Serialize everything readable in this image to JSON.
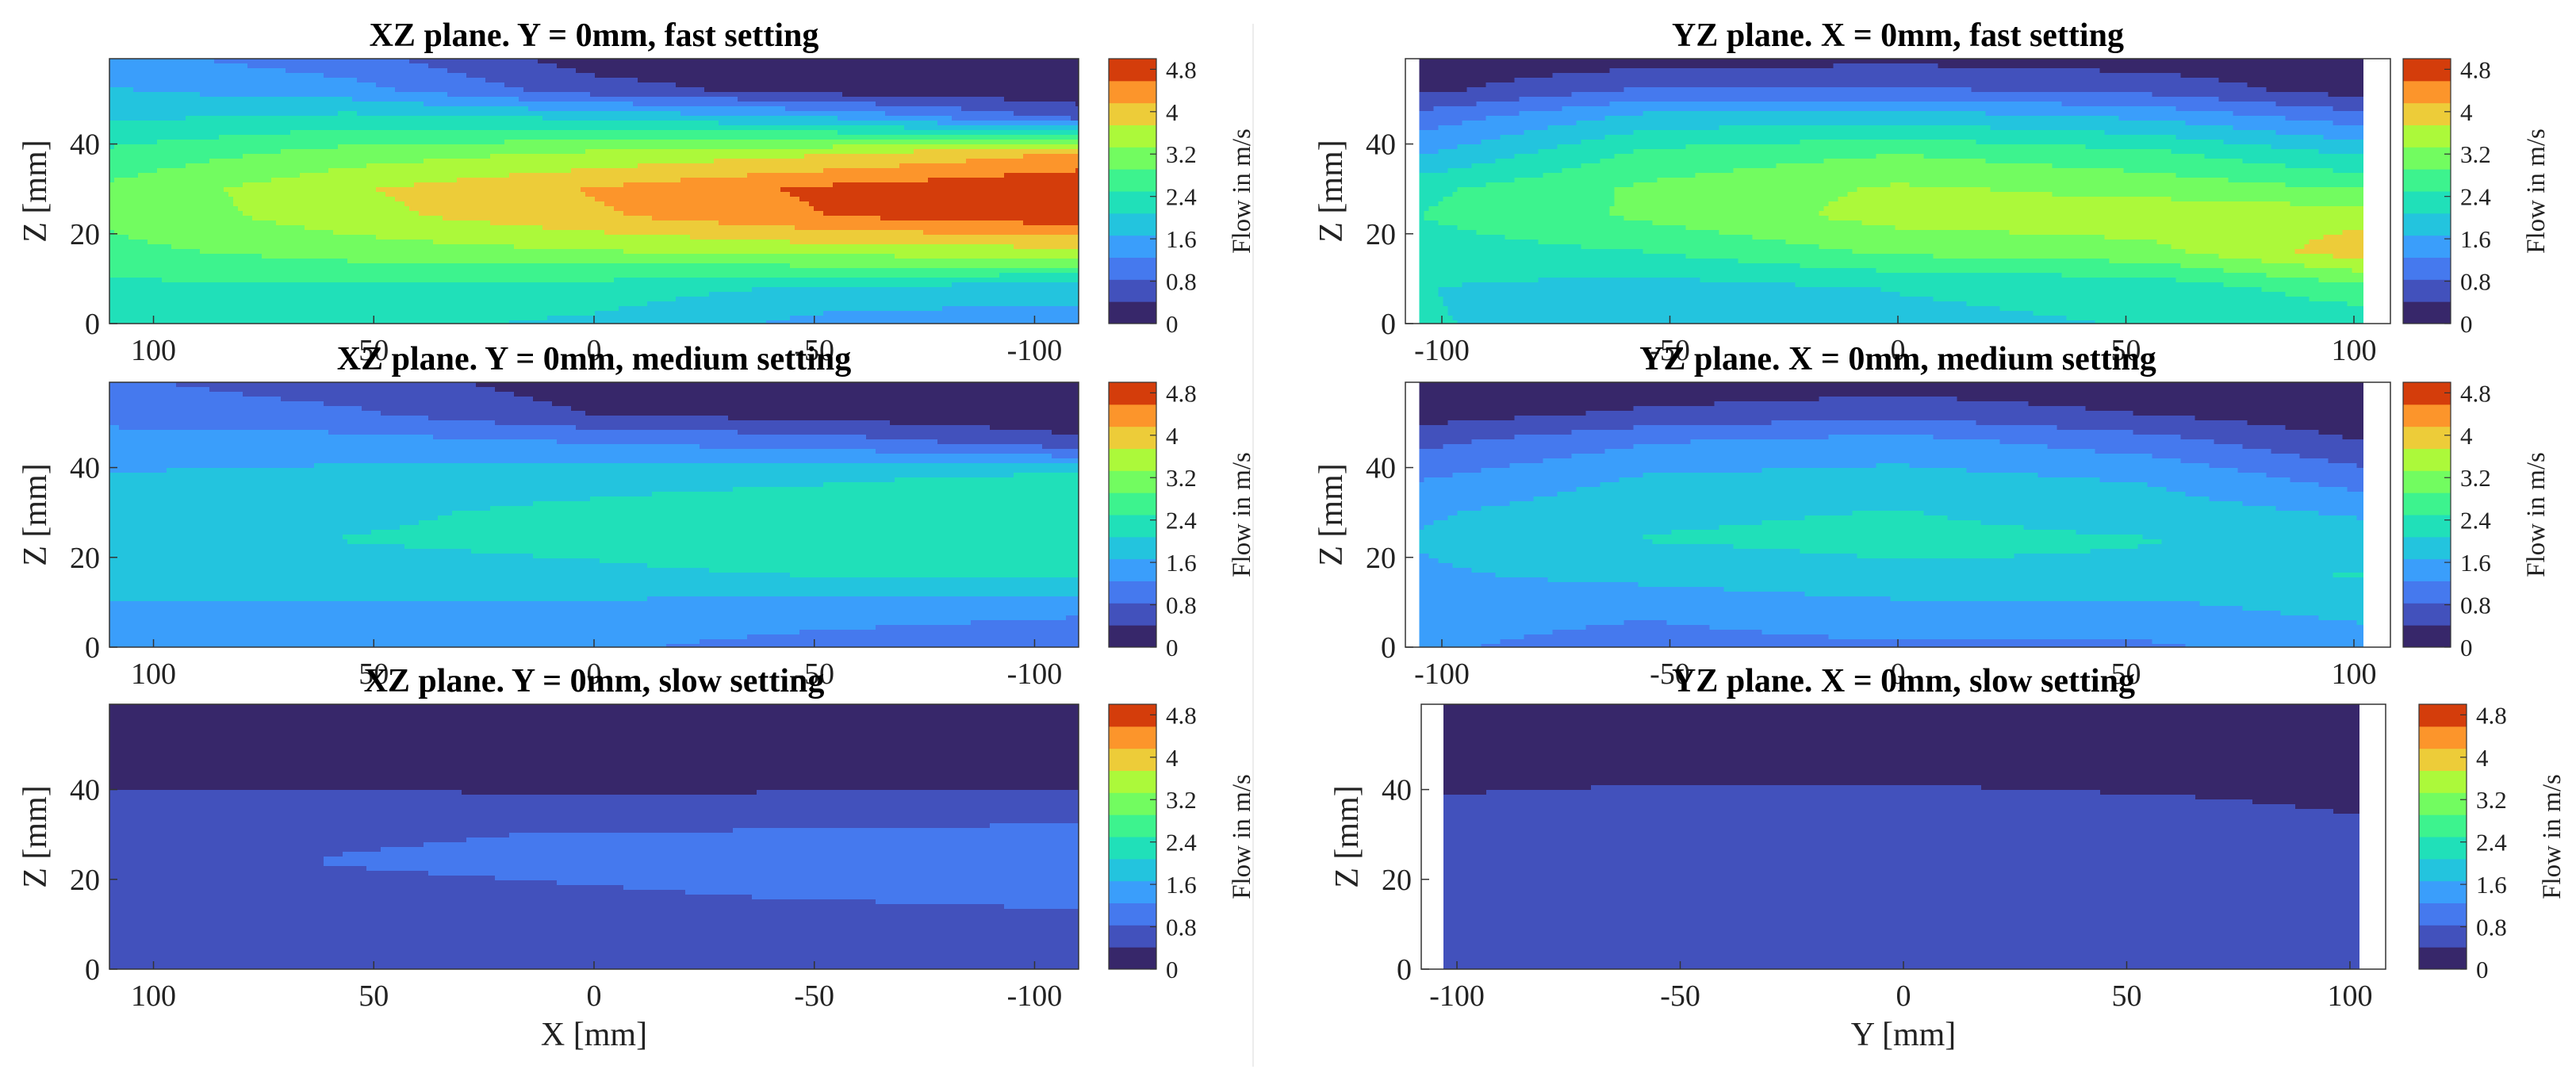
{
  "chart_data": [
    {
      "type": "heatmap",
      "title": "XZ plane. Y = 0mm, fast setting",
      "xlabel": "",
      "ylabel": "Z [mm]",
      "xreversed": true,
      "xlim": [
        110,
        -110
      ],
      "ylim": [
        0,
        59
      ],
      "xticks": [
        {
          "v": 100,
          "l": "100"
        },
        {
          "v": 50,
          "l": "50"
        },
        {
          "v": 0,
          "l": "0"
        },
        {
          "v": -50,
          "l": "-50"
        },
        {
          "v": -100,
          "l": "-100"
        }
      ],
      "yticks": [
        {
          "v": 0,
          "l": "0"
        },
        {
          "v": 20,
          "l": "20"
        },
        {
          "v": 40,
          "l": "40"
        }
      ],
      "colorbar": {
        "label": "Flow in m/s",
        "range": [
          0,
          5
        ],
        "ticks": [
          {
            "v": 0,
            "l": "0"
          },
          {
            "v": 0.8,
            "l": "0.8"
          },
          {
            "v": 1.6,
            "l": "1.6"
          },
          {
            "v": 2.4,
            "l": "2.4"
          },
          {
            "v": 3.2,
            "l": "3.2"
          },
          {
            "v": 4,
            "l": "4"
          },
          {
            "v": 4.8,
            "l": "4.8"
          }
        ]
      },
      "z_samples": [
        0,
        8,
        16,
        24,
        30,
        38,
        46,
        52,
        59
      ],
      "x": [
        110,
        55,
        0,
        -55,
        -110
      ],
      "values": [
        [
          2.2,
          2.2,
          2.0,
          1.5,
          1.4
        ],
        [
          2.4,
          2.4,
          2.3,
          2.0,
          1.9
        ],
        [
          2.8,
          3.1,
          3.3,
          3.5,
          3.6
        ],
        [
          3.0,
          3.6,
          4.1,
          4.6,
          4.9
        ],
        [
          3.0,
          3.7,
          4.2,
          4.7,
          5.0
        ],
        [
          2.6,
          3.1,
          3.4,
          3.7,
          4.2
        ],
        [
          2.0,
          2.2,
          2.0,
          1.6,
          0.7
        ],
        [
          1.7,
          1.4,
          0.6,
          0.2,
          0.1
        ],
        [
          1.4,
          1.0,
          0.2,
          0.1,
          0.1
        ]
      ]
    },
    {
      "type": "heatmap",
      "title": "YZ plane. X = 0mm, fast setting",
      "xlabel": "",
      "ylabel": "Z [mm]",
      "xreversed": false,
      "xlim": [
        -108,
        108
      ],
      "ylim": [
        0,
        59
      ],
      "xticks": [
        {
          "v": -100,
          "l": "-100"
        },
        {
          "v": -50,
          "l": "-50"
        },
        {
          "v": 0,
          "l": "0"
        },
        {
          "v": 50,
          "l": "50"
        },
        {
          "v": 100,
          "l": "100"
        }
      ],
      "yticks": [
        {
          "v": 0,
          "l": "0"
        },
        {
          "v": 20,
          "l": "20"
        },
        {
          "v": 40,
          "l": "40"
        }
      ],
      "colorbar": {
        "label": "Flow in m/s",
        "range": [
          0,
          5
        ],
        "ticks": [
          {
            "v": 0,
            "l": "0"
          },
          {
            "v": 0.8,
            "l": "0.8"
          },
          {
            "v": 1.6,
            "l": "1.6"
          },
          {
            "v": 2.4,
            "l": "2.4"
          },
          {
            "v": 3.2,
            "l": "3.2"
          },
          {
            "v": 4,
            "l": "4"
          },
          {
            "v": 4.8,
            "l": "4.8"
          }
        ]
      },
      "data_xrange": [
        -105,
        102
      ],
      "z_samples": [
        0,
        8,
        16,
        24,
        30,
        38,
        46,
        52,
        59
      ],
      "x": [
        -105,
        -55,
        0,
        55,
        102
      ],
      "values": [
        [
          2.1,
          2.0,
          2.0,
          2.1,
          2.2
        ],
        [
          2.1,
          1.9,
          2.1,
          2.2,
          2.8
        ],
        [
          2.3,
          2.5,
          3.0,
          3.2,
          4.0
        ],
        [
          2.5,
          3.0,
          3.5,
          3.6,
          3.6
        ],
        [
          2.4,
          3.0,
          3.4,
          3.2,
          2.9
        ],
        [
          1.6,
          2.6,
          2.9,
          2.6,
          2.0
        ],
        [
          1.0,
          1.8,
          1.9,
          1.6,
          1.0
        ],
        [
          0.3,
          0.9,
          0.9,
          0.7,
          0.2
        ],
        [
          0.1,
          0.2,
          0.3,
          0.2,
          0.1
        ]
      ]
    },
    {
      "type": "heatmap",
      "title": "XZ plane. Y = 0mm, medium setting",
      "xlabel": "",
      "ylabel": "Z [mm]",
      "xreversed": true,
      "xlim": [
        110,
        -110
      ],
      "ylim": [
        0,
        59
      ],
      "xticks": [
        {
          "v": 100,
          "l": "100"
        },
        {
          "v": 50,
          "l": "50"
        },
        {
          "v": 0,
          "l": "0"
        },
        {
          "v": -50,
          "l": "-50"
        },
        {
          "v": -100,
          "l": "-100"
        }
      ],
      "yticks": [
        {
          "v": 0,
          "l": "0"
        },
        {
          "v": 20,
          "l": "20"
        },
        {
          "v": 40,
          "l": "40"
        }
      ],
      "colorbar": {
        "label": "Flow in m/s",
        "range": [
          0,
          5
        ],
        "ticks": [
          {
            "v": 0,
            "l": "0"
          },
          {
            "v": 0.8,
            "l": "0.8"
          },
          {
            "v": 1.6,
            "l": "1.6"
          },
          {
            "v": 2.4,
            "l": "2.4"
          },
          {
            "v": 3.2,
            "l": "3.2"
          },
          {
            "v": 4,
            "l": "4"
          },
          {
            "v": 4.8,
            "l": "4.8"
          }
        ]
      },
      "z_samples": [
        0,
        8,
        16,
        24,
        30,
        38,
        46,
        52,
        59
      ],
      "x": [
        110,
        55,
        0,
        -55,
        -110
      ],
      "values": [
        [
          1.4,
          1.4,
          1.3,
          1.1,
          1.0
        ],
        [
          1.6,
          1.6,
          1.5,
          1.4,
          1.3
        ],
        [
          1.8,
          1.9,
          2.0,
          2.1,
          2.1
        ],
        [
          1.9,
          2.1,
          2.2,
          2.4,
          2.5
        ],
        [
          1.9,
          2.0,
          2.2,
          2.4,
          2.5
        ],
        [
          1.7,
          1.8,
          1.9,
          2.0,
          2.2
        ],
        [
          1.4,
          1.4,
          1.2,
          1.0,
          0.5
        ],
        [
          1.1,
          0.9,
          0.4,
          0.2,
          0.1
        ],
        [
          0.9,
          0.6,
          0.2,
          0.1,
          0.1
        ]
      ]
    },
    {
      "type": "heatmap",
      "title": "YZ plane. X = 0mm, medium setting",
      "xlabel": "",
      "ylabel": "Z [mm]",
      "xreversed": false,
      "xlim": [
        -108,
        108
      ],
      "ylim": [
        0,
        59
      ],
      "xticks": [
        {
          "v": -100,
          "l": "-100"
        },
        {
          "v": -50,
          "l": "-50"
        },
        {
          "v": 0,
          "l": "0"
        },
        {
          "v": 50,
          "l": "50"
        },
        {
          "v": 100,
          "l": "100"
        }
      ],
      "yticks": [
        {
          "v": 0,
          "l": "0"
        },
        {
          "v": 20,
          "l": "20"
        },
        {
          "v": 40,
          "l": "40"
        }
      ],
      "colorbar": {
        "label": "Flow in m/s",
        "range": [
          0,
          5
        ],
        "ticks": [
          {
            "v": 0,
            "l": "0"
          },
          {
            "v": 0.8,
            "l": "0.8"
          },
          {
            "v": 1.6,
            "l": "1.6"
          },
          {
            "v": 2.4,
            "l": "2.4"
          },
          {
            "v": 3.2,
            "l": "3.2"
          },
          {
            "v": 4,
            "l": "4"
          },
          {
            "v": 4.8,
            "l": "4.8"
          }
        ]
      },
      "data_xrange": [
        -105,
        102
      ],
      "z_samples": [
        0,
        8,
        16,
        24,
        30,
        38,
        46,
        52,
        59
      ],
      "x": [
        -105,
        -55,
        0,
        55,
        102
      ],
      "values": [
        [
          1.3,
          1.1,
          1.2,
          1.2,
          1.4
        ],
        [
          1.4,
          1.3,
          1.5,
          1.5,
          1.8
        ],
        [
          1.6,
          1.8,
          2.0,
          2.0,
          2.1
        ],
        [
          1.7,
          2.1,
          2.2,
          2.1,
          1.9
        ],
        [
          1.6,
          2.0,
          2.1,
          1.9,
          1.6
        ],
        [
          1.2,
          1.7,
          1.8,
          1.6,
          1.0
        ],
        [
          0.7,
          1.2,
          1.4,
          1.0,
          0.4
        ],
        [
          0.2,
          0.5,
          0.7,
          0.4,
          0.1
        ],
        [
          0.1,
          0.1,
          0.2,
          0.1,
          0.1
        ]
      ]
    },
    {
      "type": "heatmap",
      "title": "XZ plane. Y = 0mm, slow setting",
      "xlabel": "X [mm]",
      "ylabel": "Z [mm]",
      "xreversed": true,
      "xlim": [
        110,
        -110
      ],
      "ylim": [
        0,
        59
      ],
      "xticks": [
        {
          "v": 100,
          "l": "100"
        },
        {
          "v": 50,
          "l": "50"
        },
        {
          "v": 0,
          "l": "0"
        },
        {
          "v": -50,
          "l": "-50"
        },
        {
          "v": -100,
          "l": "-100"
        }
      ],
      "yticks": [
        {
          "v": 0,
          "l": "0"
        },
        {
          "v": 20,
          "l": "20"
        },
        {
          "v": 40,
          "l": "40"
        }
      ],
      "colorbar": {
        "label": "Flow in m/s",
        "range": [
          0,
          5
        ],
        "ticks": [
          {
            "v": 0,
            "l": "0"
          },
          {
            "v": 0.8,
            "l": "0.8"
          },
          {
            "v": 1.6,
            "l": "1.6"
          },
          {
            "v": 2.4,
            "l": "2.4"
          },
          {
            "v": 3.2,
            "l": "3.2"
          },
          {
            "v": 4,
            "l": "4"
          },
          {
            "v": 4.8,
            "l": "4.8"
          }
        ]
      },
      "z_samples": [
        0,
        8,
        16,
        24,
        30,
        38,
        46,
        52,
        59
      ],
      "x": [
        110,
        55,
        0,
        -55,
        -110
      ],
      "values": [
        [
          0.5,
          0.5,
          0.5,
          0.5,
          0.6
        ],
        [
          0.55,
          0.55,
          0.6,
          0.65,
          0.7
        ],
        [
          0.7,
          0.75,
          0.8,
          0.85,
          0.9
        ],
        [
          0.75,
          0.85,
          0.9,
          0.95,
          1.1
        ],
        [
          0.7,
          0.8,
          0.85,
          0.9,
          0.95
        ],
        [
          0.5,
          0.5,
          0.45,
          0.5,
          0.55
        ],
        [
          0.2,
          0.15,
          0.1,
          0.1,
          0.1
        ],
        [
          0.1,
          0.1,
          0.1,
          0.1,
          0.1
        ],
        [
          0.1,
          0.1,
          0.1,
          0.1,
          0.1
        ]
      ]
    },
    {
      "type": "heatmap",
      "title": "YZ plane. X = 0mm, slow setting",
      "xlabel": "Y [mm]",
      "ylabel": "Z [mm]",
      "xreversed": false,
      "xlim": [
        -108,
        108
      ],
      "ylim": [
        0,
        59
      ],
      "xticks": [
        {
          "v": -100,
          "l": "-100"
        },
        {
          "v": -50,
          "l": "-50"
        },
        {
          "v": 0,
          "l": "0"
        },
        {
          "v": 50,
          "l": "50"
        },
        {
          "v": 100,
          "l": "100"
        }
      ],
      "yticks": [
        {
          "v": 0,
          "l": "0"
        },
        {
          "v": 20,
          "l": "20"
        },
        {
          "v": 40,
          "l": "40"
        }
      ],
      "colorbar": {
        "label": "Flow in m/s",
        "range": [
          0,
          5
        ],
        "ticks": [
          {
            "v": 0,
            "l": "0"
          },
          {
            "v": 0.8,
            "l": "0.8"
          },
          {
            "v": 1.6,
            "l": "1.6"
          },
          {
            "v": 2.4,
            "l": "2.4"
          },
          {
            "v": 3.2,
            "l": "3.2"
          },
          {
            "v": 4,
            "l": "4"
          },
          {
            "v": 4.8,
            "l": "4.8"
          }
        ]
      },
      "data_xrange": [
        -103,
        102
      ],
      "z_samples": [
        0,
        8,
        16,
        24,
        30,
        38,
        46,
        52,
        59
      ],
      "x": [
        -103,
        -55,
        0,
        55,
        102
      ],
      "values": [
        [
          0.45,
          0.5,
          0.5,
          0.5,
          0.45
        ],
        [
          0.5,
          0.6,
          0.6,
          0.55,
          0.5
        ],
        [
          0.7,
          0.75,
          0.75,
          0.7,
          0.6
        ],
        [
          0.75,
          0.8,
          0.8,
          0.75,
          0.6
        ],
        [
          0.7,
          0.75,
          0.75,
          0.65,
          0.5
        ],
        [
          0.45,
          0.55,
          0.55,
          0.45,
          0.35
        ],
        [
          0.15,
          0.2,
          0.2,
          0.15,
          0.1
        ],
        [
          0.1,
          0.1,
          0.1,
          0.1,
          0.1
        ],
        [
          0.1,
          0.1,
          0.1,
          0.1,
          0.1
        ]
      ]
    }
  ]
}
